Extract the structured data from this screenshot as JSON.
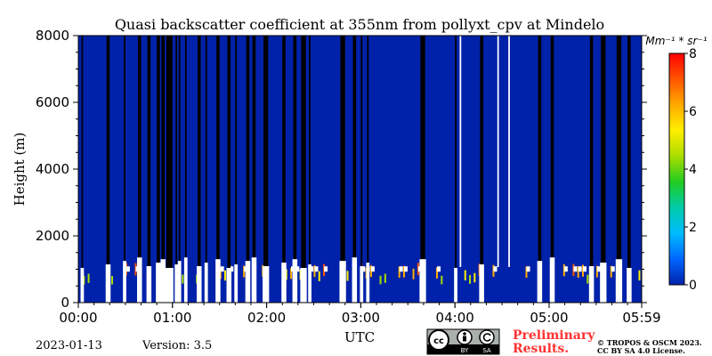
{
  "chart_data": {
    "type": "heatmap",
    "title": "Quasi backscatter coefficient at 355nm from pollyxt_cpv at Mindelo",
    "xlabel": "UTC",
    "ylabel": "Height (m)",
    "x_tick_labels": [
      "00:00",
      "01:00",
      "02:00",
      "03:00",
      "04:00",
      "05:00",
      "05:59"
    ],
    "x_tick_minutes": [
      0,
      60,
      120,
      180,
      240,
      300,
      359
    ],
    "x_range_minutes": [
      0,
      359
    ],
    "y_ticks": [
      0,
      2000,
      4000,
      6000,
      8000
    ],
    "ylim": [
      0,
      8000
    ],
    "colorbar": {
      "unit_label": "Mm⁻¹ * sr⁻¹",
      "range": [
        0,
        8
      ],
      "ticks": [
        0,
        2,
        4,
        6,
        8
      ],
      "colors": [
        "#0022aa",
        "#0066ff",
        "#00bbff",
        "#00ccaa",
        "#22cc22",
        "#aadd00",
        "#ffee00",
        "#ffaa00",
        "#ff5500",
        "#ff0000"
      ]
    },
    "background_value": 0.3,
    "cloud_columns_minutes": [
      [
        2,
        3
      ],
      [
        18,
        20
      ],
      [
        29,
        30
      ],
      [
        38,
        40
      ],
      [
        44,
        46
      ],
      [
        50,
        52
      ],
      [
        53,
        55
      ],
      [
        56,
        60
      ],
      [
        62,
        63
      ],
      [
        64,
        65
      ],
      [
        68,
        69
      ],
      [
        76,
        78
      ],
      [
        81,
        82
      ],
      [
        88,
        90
      ],
      [
        95,
        97
      ],
      [
        100,
        101
      ],
      [
        107,
        109
      ],
      [
        111,
        113
      ],
      [
        118,
        121
      ],
      [
        130,
        132
      ],
      [
        137,
        139
      ],
      [
        142,
        145
      ],
      [
        147,
        148
      ],
      [
        167,
        170
      ],
      [
        175,
        177
      ],
      [
        180,
        181
      ],
      [
        184,
        185
      ],
      [
        218,
        221
      ],
      [
        240,
        241
      ],
      [
        256,
        258
      ],
      [
        293,
        295
      ],
      [
        301,
        303
      ],
      [
        326,
        328
      ],
      [
        333,
        336
      ],
      [
        343,
        346
      ],
      [
        350,
        352
      ]
    ],
    "clear_columns_minutes": [
      [
        243,
        244
      ],
      [
        267,
        268
      ],
      [
        274,
        275
      ]
    ],
    "low_layer_top_m": 1300
  },
  "footer": {
    "date": "2023-01-13",
    "version": "Version: 3.5",
    "license_badge": [
      "cc",
      "BY",
      "SA"
    ],
    "preliminary_line1": "Preliminary",
    "preliminary_line2": "Results.",
    "copyright_line1": "© TROPOS & OSCM 2023.",
    "copyright_line2": "CC BY SA 4.0 License."
  }
}
